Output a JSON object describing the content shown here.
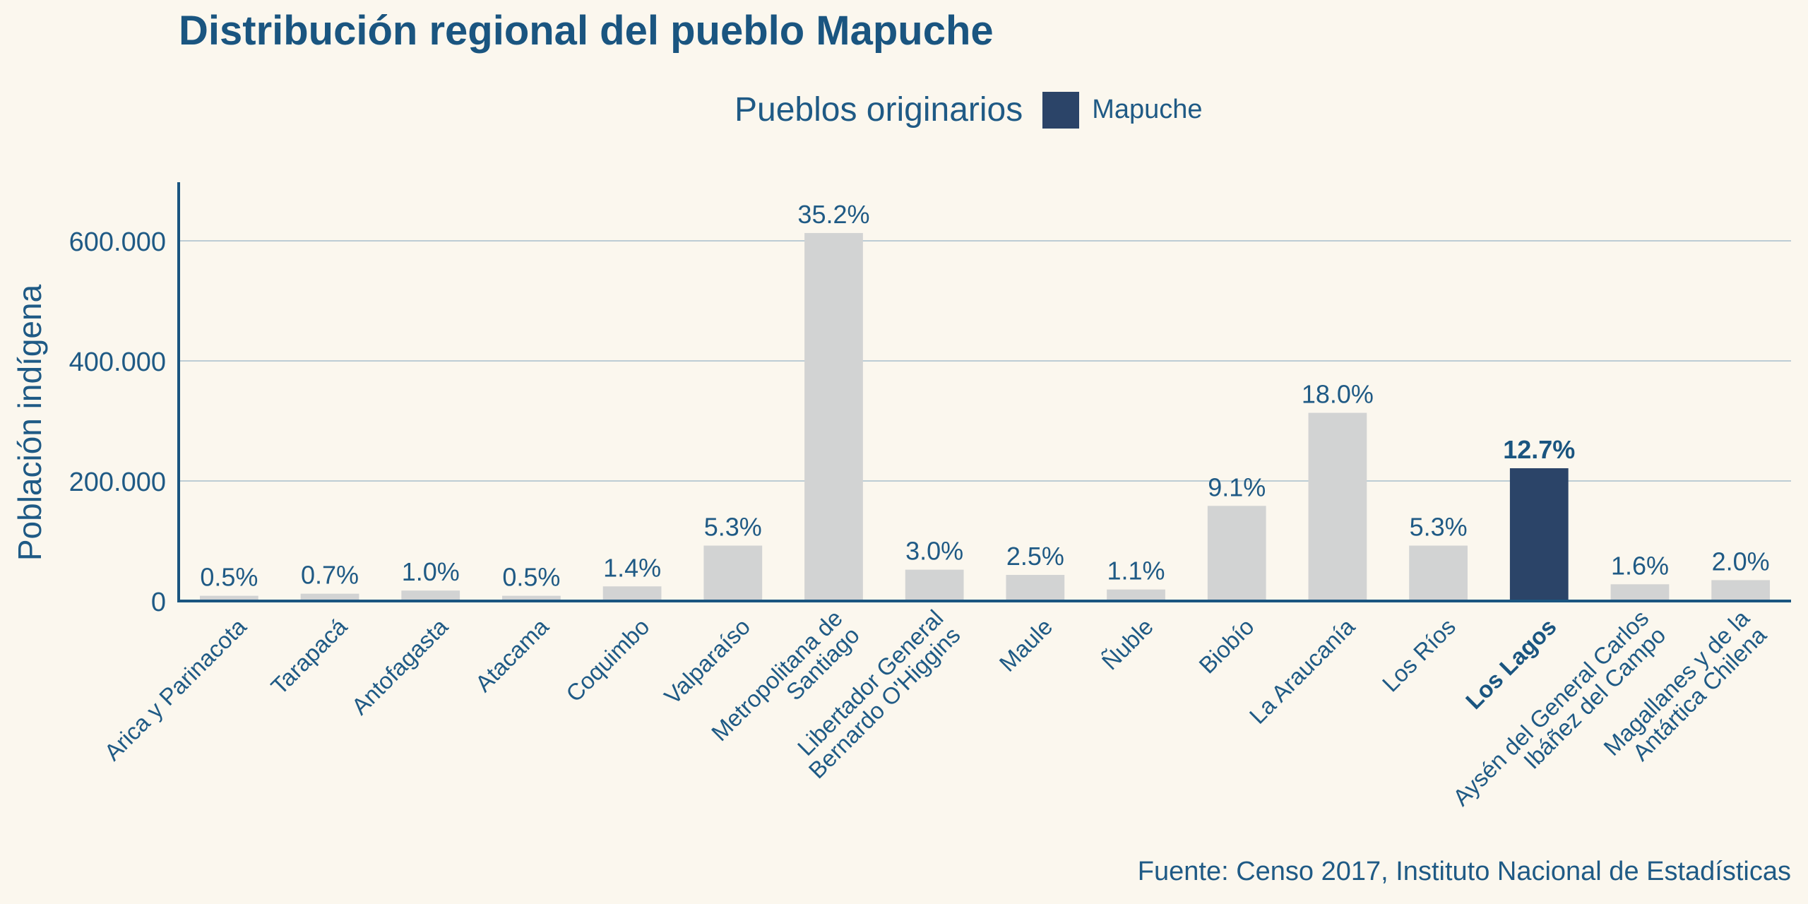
{
  "title": "Distribución regional del pueblo Mapuche",
  "legend": {
    "title": "Pueblos originarios",
    "label": "Mapuche"
  },
  "source": "Fuente: Censo 2017, Instituto Nacional de Estadísticas",
  "colors": {
    "highlight": "#2b4468",
    "default_bar": "#d2d3d3",
    "text": "#1f5a85",
    "grid": "#bcccd4",
    "axis": "#1a5580",
    "background": "#fbf7ee"
  },
  "chart_data": {
    "type": "bar",
    "title": "Distribución regional del pueblo Mapuche",
    "xlabel": "",
    "ylabel": "Población indígena",
    "ylim": [
      0,
      700000
    ],
    "yticks": [
      0,
      200000,
      400000,
      600000
    ],
    "ytick_labels": [
      "0",
      "200.000",
      "400.000",
      "600.000"
    ],
    "grid": "horizontal",
    "legend_position": "top",
    "categories": [
      [
        "Arica y Parinacota"
      ],
      [
        "Tarapacá"
      ],
      [
        "Antofagasta"
      ],
      [
        "Atacama"
      ],
      [
        "Coquimbo"
      ],
      [
        "Valparaíso"
      ],
      [
        "Metropolitana de",
        "Santiago"
      ],
      [
        "Libertador General",
        "Bernardo O'Higgins"
      ],
      [
        "Maule"
      ],
      [
        "Ñuble"
      ],
      [
        "Biobío"
      ],
      [
        "La Araucanía"
      ],
      [
        "Los Ríos"
      ],
      [
        "Los Lagos"
      ],
      [
        "Aysén del General Carlos",
        "Ibáñez del Campo"
      ],
      [
        "Magallanes y de la",
        "Antártica Chilena"
      ]
    ],
    "values": [
      8700,
      12200,
      17400,
      8700,
      24400,
      92300,
      613000,
      52200,
      43500,
      19200,
      158500,
      313500,
      92300,
      221200,
      27900,
      34800
    ],
    "labels": [
      "0.5%",
      "0.7%",
      "1.0%",
      "0.5%",
      "1.4%",
      "5.3%",
      "35.2%",
      "3.0%",
      "2.5%",
      "1.1%",
      "9.1%",
      "18.0%",
      "5.3%",
      "12.7%",
      "1.6%",
      "2.0%"
    ],
    "highlight_index": 13,
    "series": [
      {
        "name": "Mapuche"
      }
    ]
  }
}
